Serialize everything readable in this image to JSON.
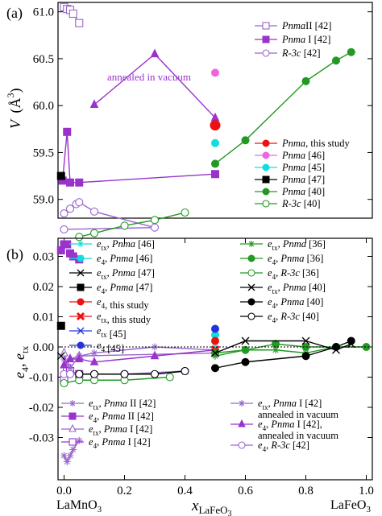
{
  "chart_data": [
    {
      "type": "scatter",
      "panel_label": "(a)",
      "ylabel": "V (Å³)",
      "ylabel_main": "V",
      "ylabel_unit": "(Å",
      "ylabel_sup": "3",
      "ylabel_close": ")",
      "xlim": [
        -0.02,
        1.02
      ],
      "ylim": [
        58.8,
        61.1
      ],
      "yticks": [
        59.0,
        59.5,
        60.0,
        60.5,
        61.0
      ],
      "ytick_labels": [
        "59.0",
        "59.5",
        "60.0",
        "60.5",
        "61.0"
      ],
      "annotation": "annealed in vacuum",
      "series": [
        {
          "name": "PnmaII [42]",
          "label_parts": [
            "Pnma",
            "II [42]"
          ],
          "color": "#9966cc",
          "marker": "square-open",
          "line": true,
          "x": [
            0.0,
            0.01,
            0.02,
            0.03,
            0.05
          ],
          "y": [
            61.05,
            61.03,
            61.02,
            60.98,
            60.88
          ]
        },
        {
          "name": "Pnma I [42]",
          "label_parts": [
            "Pnma",
            " I [42]"
          ],
          "color": "#9933cc",
          "marker": "square",
          "line": true,
          "x": [
            -0.005,
            0.01,
            0.02,
            0.05,
            0.5
          ],
          "y": [
            59.2,
            59.72,
            59.18,
            59.18,
            59.27
          ]
        },
        {
          "name": "R-3c [42]",
          "label_parts": [
            "R-3c",
            " [42]"
          ],
          "color": "#9966cc",
          "marker": "circle-open",
          "line": true,
          "x": [
            0.0,
            0.02,
            0.04,
            0.05,
            0.1,
            0.3,
            0.0
          ],
          "y": [
            58.85,
            58.9,
            58.95,
            58.97,
            58.87,
            58.7,
            58.68
          ]
        },
        {
          "name": "annealed in vacuum",
          "label_parts": [],
          "color": "#9933cc",
          "marker": "triangle",
          "line": true,
          "x": [
            0.1,
            0.3,
            0.5
          ],
          "y": [
            60.01,
            60.55,
            59.87
          ]
        },
        {
          "name": "Pnma, this study",
          "label_parts": [
            "Pnma",
            ", this study"
          ],
          "color": "#ee1111",
          "marker": "circle-big",
          "line": false,
          "x": [
            0.5
          ],
          "y": [
            59.79
          ]
        },
        {
          "name": "Pnma [46]",
          "label_parts": [
            "Pnma",
            " [46]"
          ],
          "color": "#ee66dd",
          "marker": "circle",
          "line": false,
          "x": [
            0.5
          ],
          "y": [
            60.35
          ]
        },
        {
          "name": "Pnma [45]",
          "label_parts": [
            "Pnma",
            " [45]"
          ],
          "color": "#11dddd",
          "marker": "circle",
          "line": false,
          "x": [
            0.5
          ],
          "y": [
            59.6
          ]
        },
        {
          "name": "Pnma [47]",
          "label_parts": [
            "Pnma",
            " [47]"
          ],
          "color": "#000000",
          "marker": "square",
          "line": false,
          "x": [
            -0.01
          ],
          "y": [
            59.25
          ]
        },
        {
          "name": "Pnma [40]",
          "label_parts": [
            "Pnma",
            " [40]"
          ],
          "color": "#229922",
          "marker": "circle",
          "line": true,
          "x": [
            0.5,
            0.6,
            0.8,
            0.9,
            0.95
          ],
          "y": [
            59.38,
            59.63,
            60.26,
            60.48,
            60.57
          ]
        },
        {
          "name": "R-3c [40]",
          "label_parts": [
            "R-3c",
            " [40]"
          ],
          "color": "#229922",
          "marker": "circle-open",
          "line": true,
          "x": [
            0.05,
            0.1,
            0.2,
            0.3,
            0.4
          ],
          "y": [
            58.6,
            58.64,
            58.72,
            58.78,
            58.86
          ]
        }
      ]
    },
    {
      "type": "scatter",
      "panel_label": "(b)",
      "ylabel": "e4, etx",
      "xlabel": "x LaFeO3",
      "xlim": [
        -0.02,
        1.02
      ],
      "ylim": [
        -0.044,
        0.036
      ],
      "yticks": [
        -0.03,
        -0.02,
        -0.01,
        0.0,
        0.01,
        0.02,
        0.03
      ],
      "ytick_labels": [
        "-0.03",
        "-0.02",
        "-0.01",
        "0.00",
        "0.01",
        "0.02",
        "0.03"
      ],
      "xticks": [
        0.0,
        0.2,
        0.4,
        0.6,
        0.8,
        1.0
      ],
      "xtick_labels": [
        "0.0",
        "0.2",
        "0.4",
        "0.6",
        "0.8",
        "1.0"
      ],
      "x_end_labels": {
        "left": "LaMnO",
        "left_sub": "3",
        "right": "LaFeO",
        "right_sub": "3"
      },
      "xlabel_main": "x",
      "xlabel_sub": "LaFeO",
      "xlabel_subsub": "3",
      "series": [
        {
          "name": "e4, Pnma II [42]",
          "color": "#9933cc",
          "marker": "square",
          "line": false,
          "x": [
            -0.01,
            0.0,
            0.01,
            0.02,
            0.03,
            0.05
          ],
          "y": [
            0.032,
            0.034,
            0.034,
            0.031,
            0.03,
            0.029
          ]
        },
        {
          "name": "etx, Pnma II [42]",
          "color": "#9966cc",
          "marker": "star",
          "line": true,
          "x": [
            0.0,
            0.01,
            0.02,
            0.03,
            0.05
          ],
          "y": [
            -0.036,
            -0.038,
            -0.036,
            -0.034,
            -0.031
          ]
        },
        {
          "name": "etx, Pnma I [42]",
          "color": "#9966cc",
          "marker": "triangle-open",
          "line": true,
          "x": [
            0.0,
            0.01,
            0.02,
            0.05,
            0.5
          ],
          "y": [
            -0.002,
            -0.006,
            -0.004,
            -0.003,
            -0.002
          ]
        },
        {
          "name": "e4, Pnma I [42]",
          "color": "#9933cc",
          "marker": "square-open",
          "line": true,
          "x": [
            0.0,
            0.01,
            0.02,
            0.05
          ],
          "y": [
            -0.011,
            -0.007,
            -0.008,
            -0.009
          ]
        },
        {
          "name": "etx, Pnma I [42] annealed",
          "color": "#9966cc",
          "marker": "star",
          "line": true,
          "x": [
            0.0,
            0.02,
            0.05,
            0.1,
            0.3,
            0.5
          ],
          "y": [
            -0.004,
            -0.007,
            -0.003,
            -0.002,
            0.0,
            -0.001
          ]
        },
        {
          "name": "e4, Pnma I [42], annealed",
          "color": "#9933cc",
          "marker": "triangle",
          "line": true,
          "x": [
            0.0,
            0.02,
            0.05,
            0.1,
            0.3,
            0.5
          ],
          "y": [
            -0.006,
            -0.004,
            -0.004,
            -0.005,
            -0.003,
            -0.001
          ]
        },
        {
          "name": "e4, R-3c [42]",
          "color": "#9966cc",
          "marker": "circle-open",
          "line": true,
          "x": [
            0.0,
            0.02,
            0.05,
            0.1,
            0.2,
            0.4
          ],
          "y": [
            -0.009,
            -0.009,
            -0.009,
            -0.009,
            -0.009,
            -0.008
          ]
        },
        {
          "name": "etx, Pnma [46]",
          "color": "#11dddd",
          "marker": "star",
          "line": false,
          "x": [
            0.5
          ],
          "y": [
            0.0
          ]
        },
        {
          "name": "e4, Pnma [46]",
          "color": "#11dddd",
          "marker": "circle",
          "line": false,
          "x": [
            0.5
          ],
          "y": [
            0.004
          ]
        },
        {
          "name": "etx, Pnma [47]",
          "color": "#000000",
          "marker": "x",
          "line": false,
          "x": [
            -0.01
          ],
          "y": [
            -0.003
          ]
        },
        {
          "name": "e4, Pnma [47]",
          "color": "#000000",
          "marker": "square",
          "line": false,
          "x": [
            -0.01
          ],
          "y": [
            0.007
          ]
        },
        {
          "name": "e4, this study",
          "color": "#ee1111",
          "marker": "circle",
          "line": false,
          "x": [
            0.5
          ],
          "y": [
            0.002
          ]
        },
        {
          "name": "etx, this study",
          "color": "#ee1111",
          "marker": "x-bold",
          "line": false,
          "x": [
            0.5
          ],
          "y": [
            -0.001
          ]
        },
        {
          "name": "etx [45]",
          "color": "#2233dd",
          "marker": "x",
          "line": false,
          "x": [
            0.5
          ],
          "y": [
            -0.002
          ]
        },
        {
          "name": "e4 [45]",
          "color": "#2233dd",
          "marker": "circle",
          "line": false,
          "x": [
            0.5
          ],
          "y": [
            0.006
          ]
        },
        {
          "name": "etx, Pnma [36]",
          "color": "#229922",
          "marker": "star",
          "line": true,
          "x": [
            0.5,
            0.6,
            0.7,
            0.8,
            0.9,
            1.0
          ],
          "y": [
            -0.003,
            -0.001,
            -0.001,
            -0.002,
            0.0,
            0.0
          ]
        },
        {
          "name": "e4, Pnma [36]",
          "color": "#229922",
          "marker": "circle",
          "line": true,
          "x": [
            0.5,
            0.6,
            0.7,
            0.8,
            0.9,
            1.0
          ],
          "y": [
            -0.002,
            -0.001,
            0.001,
            0.0,
            0.0,
            0.0
          ]
        },
        {
          "name": "e4, R-3c [36]",
          "color": "#229922",
          "marker": "circle-open",
          "line": true,
          "x": [
            0.0,
            0.05,
            0.1,
            0.2,
            0.35
          ],
          "y": [
            -0.012,
            -0.011,
            -0.011,
            -0.011,
            -0.01
          ]
        },
        {
          "name": "etx, Pnma [40]",
          "color": "#000000",
          "marker": "x",
          "line": true,
          "x": [
            0.5,
            0.6,
            0.8,
            0.9,
            0.95
          ],
          "y": [
            -0.002,
            0.002,
            0.002,
            -0.001,
            0.001
          ]
        },
        {
          "name": "e4, Pnma [40]",
          "color": "#000000",
          "marker": "circle",
          "line": true,
          "x": [
            0.5,
            0.6,
            0.8,
            0.9,
            0.95
          ],
          "y": [
            -0.007,
            -0.005,
            -0.003,
            0.0,
            0.002
          ]
        },
        {
          "name": "e4, R-3c [40]",
          "color": "#000000",
          "marker": "circle-open",
          "line": true,
          "x": [
            0.05,
            0.1,
            0.2,
            0.3,
            0.4
          ],
          "y": [
            -0.009,
            -0.009,
            -0.009,
            -0.009,
            -0.008
          ]
        }
      ]
    }
  ],
  "legend_a": [
    {
      "marker": "square-open",
      "color": "#9966cc",
      "it": "Pnma",
      "rest": "II [42]"
    },
    {
      "marker": "square",
      "color": "#9933cc",
      "it": "Pnma",
      "rest": " I [42]"
    },
    {
      "marker": "circle-open",
      "color": "#9966cc",
      "it": "R-3c",
      "rest": " [42]"
    }
  ],
  "legend_a2": [
    {
      "marker": "circle",
      "color": "#ee1111",
      "it": "Pnma",
      "rest": ", this study"
    },
    {
      "marker": "circle",
      "color": "#ee66dd",
      "it": "Pnma",
      "rest": " [46]"
    },
    {
      "marker": "circle",
      "color": "#11dddd",
      "it": "Pnma",
      "rest": " [45]"
    },
    {
      "marker": "square",
      "color": "#000000",
      "it": "Pnma",
      "rest": " [47]"
    },
    {
      "marker": "circle",
      "color": "#229922",
      "it": "Pnma",
      "rest": " [40]"
    },
    {
      "marker": "circle-open",
      "color": "#229922",
      "it": "R-3c",
      "rest": " [40]"
    }
  ],
  "legend_b1": [
    {
      "marker": "star",
      "color": "#11dddd",
      "pre": "e",
      "sub": "tx",
      "it": "Pnma",
      "rest": " [46]"
    },
    {
      "marker": "circle",
      "color": "#11dddd",
      "pre": "e",
      "sub": "4",
      "it": "Pnma",
      "rest": " [46]"
    },
    {
      "marker": "x",
      "color": "#000000",
      "pre": "e",
      "sub": "tx",
      "it": "Pnma",
      "rest": " [47]"
    },
    {
      "marker": "square",
      "color": "#000000",
      "pre": "e",
      "sub": "4",
      "it": "Pnma",
      "rest": " [47]"
    },
    {
      "marker": "circle",
      "color": "#ee1111",
      "pre": "e",
      "sub": "4",
      "it": "",
      "rest": ", this study"
    },
    {
      "marker": "x-bold",
      "color": "#ee1111",
      "pre": "e",
      "sub": "tx",
      "it": "",
      "rest": ", this study"
    },
    {
      "marker": "x",
      "color": "#2233dd",
      "pre": "e",
      "sub": "tx",
      "it": "",
      "rest": " [45]"
    },
    {
      "marker": "circle",
      "color": "#2233dd",
      "pre": "e",
      "sub": "4",
      "it": "",
      "rest": " [45]"
    }
  ],
  "legend_b2": [
    {
      "marker": "star",
      "color": "#229922",
      "pre": "e",
      "sub": "tx",
      "it": "Pnma",
      "rest": " [36]"
    },
    {
      "marker": "circle",
      "color": "#229922",
      "pre": "e",
      "sub": "4",
      "it": "Pnma",
      "rest": " [36]"
    },
    {
      "marker": "circle-open",
      "color": "#229922",
      "pre": "e",
      "sub": "4",
      "it": "R-3c",
      "rest": " [36]"
    },
    {
      "marker": "x",
      "color": "#000000",
      "pre": "e",
      "sub": "tx",
      "it": "Pnma",
      "rest": " [40]"
    },
    {
      "marker": "circle",
      "color": "#000000",
      "pre": "e",
      "sub": "4",
      "it": "Pnma",
      "rest": " [40]"
    },
    {
      "marker": "circle-open",
      "color": "#000000",
      "pre": "e",
      "sub": "4",
      "it": "R-3c",
      "rest": " [40]"
    }
  ],
  "legend_b3": [
    {
      "marker": "star",
      "color": "#9966cc",
      "pre": "e",
      "sub": "tx",
      "it": "Pnma",
      "rest": " II [42]"
    },
    {
      "marker": "square",
      "color": "#9933cc",
      "pre": "e",
      "sub": "4",
      "it": "Pnma",
      "rest": " II [42]"
    },
    {
      "marker": "triangle-open",
      "color": "#9966cc",
      "pre": "e",
      "sub": "tx",
      "it": "Pnma",
      "rest": " I [42]"
    },
    {
      "marker": "square-open",
      "color": "#9933cc",
      "pre": "e",
      "sub": "4",
      "it": "Pnma",
      "rest": " I [42]"
    }
  ],
  "legend_b4": [
    {
      "marker": "star",
      "color": "#9966cc",
      "pre": "e",
      "sub": "tx",
      "it": "Pnma",
      "rest": " I [42]",
      "line2": "annealed in vacuum"
    },
    {
      "marker": "triangle",
      "color": "#9933cc",
      "pre": "e",
      "sub": "4",
      "it": "Pnma",
      "rest": " I [42],",
      "line2": "annealed in vacuum"
    },
    {
      "marker": "circle-open",
      "color": "#9966cc",
      "pre": "e",
      "sub": "4",
      "it": "R-3c",
      "rest": " [42]"
    }
  ]
}
